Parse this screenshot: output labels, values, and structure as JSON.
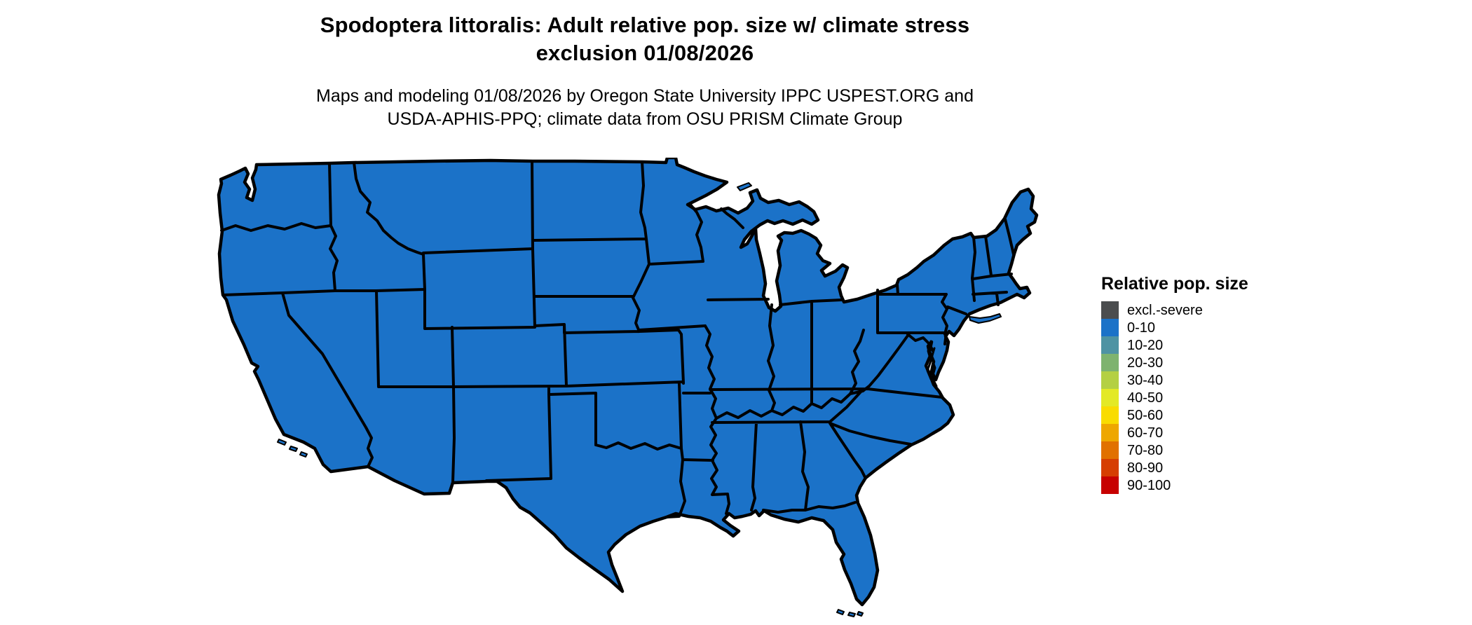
{
  "title": {
    "line1": "Spodoptera littoralis: Adult relative pop. size w/ climate stress",
    "line2": "exclusion 01/08/2026"
  },
  "subtitle": {
    "line1": "Maps and modeling 01/08/2026 by Oregon State University IPPC USPEST.ORG and",
    "line2": "USDA-APHIS-PPQ; climate data from OSU PRISM Climate Group"
  },
  "legend": {
    "title": "Relative pop. size",
    "items": [
      {
        "label": "excl.-severe",
        "color": "#4b4d4f"
      },
      {
        "label": "0-10",
        "color": "#1b72c8"
      },
      {
        "label": "10-20",
        "color": "#4e93a3"
      },
      {
        "label": "20-30",
        "color": "#7eb36f"
      },
      {
        "label": "30-40",
        "color": "#b4d043"
      },
      {
        "label": "40-50",
        "color": "#e3e926"
      },
      {
        "label": "50-60",
        "color": "#f9dc00"
      },
      {
        "label": "60-70",
        "color": "#eea700"
      },
      {
        "label": "70-80",
        "color": "#e17100"
      },
      {
        "label": "80-90",
        "color": "#d63e02"
      },
      {
        "label": "90-100",
        "color": "#c70101"
      }
    ]
  },
  "map": {
    "region": "Contiguous United States",
    "all_states_category": "0-10",
    "land_fill": "#1b72c8",
    "border_color": "#000000",
    "water_color": "#ffffff"
  }
}
